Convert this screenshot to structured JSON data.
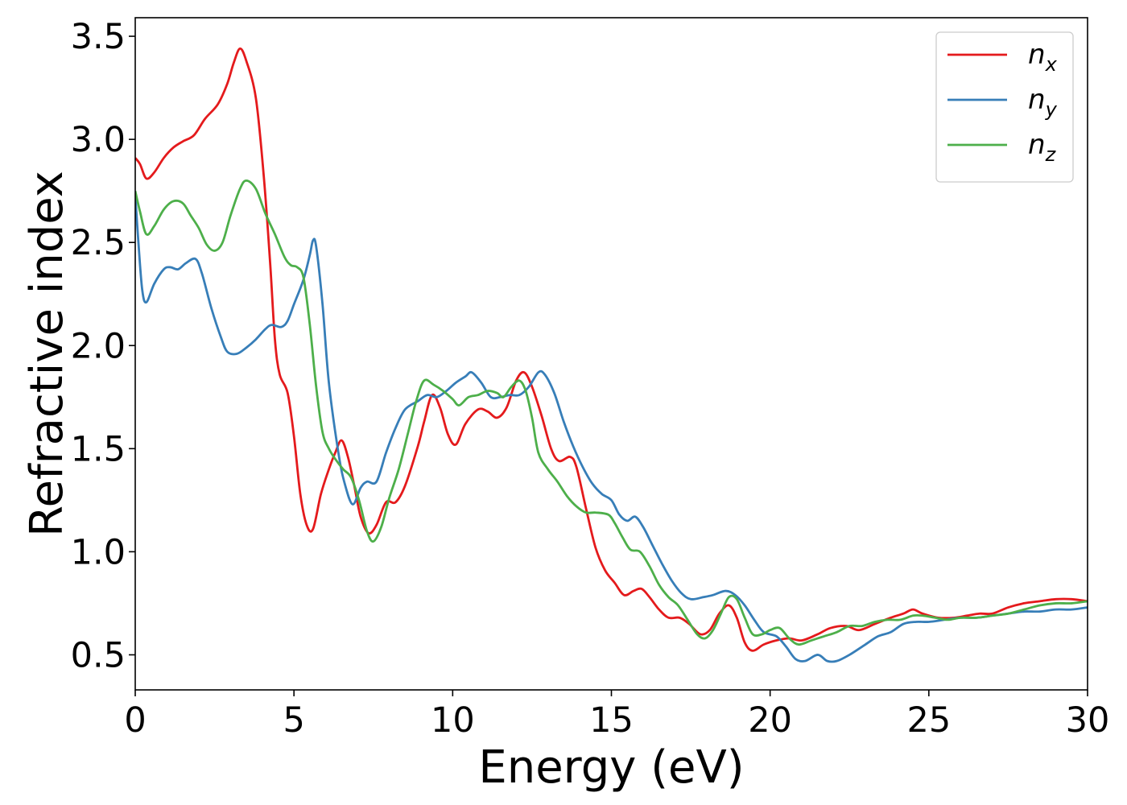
{
  "chart_data": {
    "type": "line",
    "xlabel": "Energy (eV)",
    "ylabel": "Refractive index",
    "xlim": [
      0,
      30
    ],
    "ylim": [
      0.33,
      3.59
    ],
    "xticks": [
      0,
      5,
      10,
      15,
      20,
      25,
      30
    ],
    "yticks": [
      0.5,
      1.0,
      1.5,
      2.0,
      2.5,
      3.0,
      3.5
    ],
    "xtick_labels": [
      "0",
      "5",
      "10",
      "15",
      "20",
      "25",
      "30"
    ],
    "ytick_labels": [
      "0.5",
      "1.0",
      "1.5",
      "2.0",
      "2.5",
      "3.0",
      "3.5"
    ],
    "grid": false,
    "legend_position": "top-right",
    "series": [
      {
        "name": "n_x",
        "label_base": "n",
        "label_sub": "x",
        "color": "#e41a1c",
        "points": [
          [
            0,
            2.91
          ],
          [
            0.15,
            2.88
          ],
          [
            0.35,
            2.81
          ],
          [
            0.6,
            2.84
          ],
          [
            0.9,
            2.91
          ],
          [
            1.2,
            2.96
          ],
          [
            1.5,
            2.99
          ],
          [
            1.85,
            3.02
          ],
          [
            2.2,
            3.1
          ],
          [
            2.6,
            3.17
          ],
          [
            2.9,
            3.27
          ],
          [
            3.1,
            3.37
          ],
          [
            3.3,
            3.44
          ],
          [
            3.5,
            3.38
          ],
          [
            3.8,
            3.2
          ],
          [
            4.05,
            2.82
          ],
          [
            4.25,
            2.4
          ],
          [
            4.4,
            2.03
          ],
          [
            4.55,
            1.86
          ],
          [
            4.8,
            1.77
          ],
          [
            5.0,
            1.56
          ],
          [
            5.2,
            1.28
          ],
          [
            5.4,
            1.13
          ],
          [
            5.6,
            1.11
          ],
          [
            5.85,
            1.28
          ],
          [
            6.1,
            1.4
          ],
          [
            6.3,
            1.48
          ],
          [
            6.5,
            1.54
          ],
          [
            6.7,
            1.46
          ],
          [
            6.9,
            1.32
          ],
          [
            7.1,
            1.17
          ],
          [
            7.35,
            1.09
          ],
          [
            7.6,
            1.13
          ],
          [
            7.9,
            1.24
          ],
          [
            8.2,
            1.24
          ],
          [
            8.5,
            1.32
          ],
          [
            8.9,
            1.51
          ],
          [
            9.1,
            1.63
          ],
          [
            9.35,
            1.76
          ],
          [
            9.6,
            1.7
          ],
          [
            9.85,
            1.57
          ],
          [
            10.1,
            1.52
          ],
          [
            10.4,
            1.62
          ],
          [
            10.8,
            1.69
          ],
          [
            11.1,
            1.68
          ],
          [
            11.4,
            1.65
          ],
          [
            11.7,
            1.7
          ],
          [
            12.0,
            1.83
          ],
          [
            12.25,
            1.87
          ],
          [
            12.5,
            1.8
          ],
          [
            12.8,
            1.66
          ],
          [
            13.1,
            1.5
          ],
          [
            13.35,
            1.44
          ],
          [
            13.7,
            1.46
          ],
          [
            13.9,
            1.41
          ],
          [
            14.2,
            1.21
          ],
          [
            14.5,
            1.02
          ],
          [
            14.8,
            0.91
          ],
          [
            15.1,
            0.85
          ],
          [
            15.4,
            0.79
          ],
          [
            15.7,
            0.81
          ],
          [
            15.95,
            0.82
          ],
          [
            16.2,
            0.78
          ],
          [
            16.5,
            0.72
          ],
          [
            16.8,
            0.68
          ],
          [
            17.15,
            0.68
          ],
          [
            17.45,
            0.65
          ],
          [
            17.8,
            0.6
          ],
          [
            18.1,
            0.62
          ],
          [
            18.4,
            0.7
          ],
          [
            18.7,
            0.74
          ],
          [
            18.95,
            0.68
          ],
          [
            19.2,
            0.56
          ],
          [
            19.45,
            0.52
          ],
          [
            19.8,
            0.55
          ],
          [
            20.2,
            0.57
          ],
          [
            20.6,
            0.58
          ],
          [
            21.0,
            0.57
          ],
          [
            21.5,
            0.6
          ],
          [
            21.9,
            0.63
          ],
          [
            22.4,
            0.64
          ],
          [
            22.8,
            0.62
          ],
          [
            23.3,
            0.65
          ],
          [
            23.8,
            0.68
          ],
          [
            24.2,
            0.7
          ],
          [
            24.5,
            0.72
          ],
          [
            24.8,
            0.7
          ],
          [
            25.3,
            0.68
          ],
          [
            25.8,
            0.68
          ],
          [
            26.2,
            0.69
          ],
          [
            26.6,
            0.7
          ],
          [
            27.0,
            0.7
          ],
          [
            27.5,
            0.73
          ],
          [
            28.0,
            0.75
          ],
          [
            28.5,
            0.76
          ],
          [
            29.0,
            0.77
          ],
          [
            29.5,
            0.77
          ],
          [
            30.0,
            0.76
          ]
        ]
      },
      {
        "name": "n_y",
        "label_base": "n",
        "label_sub": "y",
        "color": "#377eb8",
        "points": [
          [
            0,
            2.73
          ],
          [
            0.1,
            2.5
          ],
          [
            0.22,
            2.27
          ],
          [
            0.35,
            2.21
          ],
          [
            0.6,
            2.3
          ],
          [
            0.9,
            2.37
          ],
          [
            1.1,
            2.38
          ],
          [
            1.35,
            2.37
          ],
          [
            1.6,
            2.4
          ],
          [
            1.9,
            2.42
          ],
          [
            2.1,
            2.35
          ],
          [
            2.4,
            2.18
          ],
          [
            2.7,
            2.04
          ],
          [
            2.9,
            1.97
          ],
          [
            3.2,
            1.96
          ],
          [
            3.5,
            1.99
          ],
          [
            3.8,
            2.03
          ],
          [
            4.1,
            2.08
          ],
          [
            4.3,
            2.1
          ],
          [
            4.6,
            2.09
          ],
          [
            4.8,
            2.12
          ],
          [
            5.0,
            2.2
          ],
          [
            5.3,
            2.32
          ],
          [
            5.5,
            2.44
          ],
          [
            5.6,
            2.51
          ],
          [
            5.7,
            2.48
          ],
          [
            5.9,
            2.2
          ],
          [
            6.1,
            1.82
          ],
          [
            6.4,
            1.48
          ],
          [
            6.6,
            1.33
          ],
          [
            6.85,
            1.23
          ],
          [
            7.1,
            1.31
          ],
          [
            7.3,
            1.34
          ],
          [
            7.6,
            1.34
          ],
          [
            7.9,
            1.48
          ],
          [
            8.2,
            1.6
          ],
          [
            8.5,
            1.69
          ],
          [
            8.9,
            1.73
          ],
          [
            9.2,
            1.76
          ],
          [
            9.5,
            1.75
          ],
          [
            9.8,
            1.78
          ],
          [
            10.1,
            1.82
          ],
          [
            10.4,
            1.85
          ],
          [
            10.6,
            1.87
          ],
          [
            10.9,
            1.82
          ],
          [
            11.2,
            1.75
          ],
          [
            11.5,
            1.75
          ],
          [
            11.8,
            1.76
          ],
          [
            12.1,
            1.76
          ],
          [
            12.4,
            1.8
          ],
          [
            12.7,
            1.87
          ],
          [
            12.9,
            1.86
          ],
          [
            13.2,
            1.77
          ],
          [
            13.5,
            1.63
          ],
          [
            13.8,
            1.51
          ],
          [
            14.1,
            1.41
          ],
          [
            14.4,
            1.33
          ],
          [
            14.7,
            1.28
          ],
          [
            15.0,
            1.25
          ],
          [
            15.25,
            1.18
          ],
          [
            15.5,
            1.15
          ],
          [
            15.75,
            1.17
          ],
          [
            16.0,
            1.12
          ],
          [
            16.3,
            1.03
          ],
          [
            16.6,
            0.94
          ],
          [
            16.9,
            0.86
          ],
          [
            17.2,
            0.8
          ],
          [
            17.5,
            0.77
          ],
          [
            17.9,
            0.78
          ],
          [
            18.2,
            0.79
          ],
          [
            18.6,
            0.81
          ],
          [
            18.9,
            0.79
          ],
          [
            19.2,
            0.74
          ],
          [
            19.5,
            0.67
          ],
          [
            19.8,
            0.61
          ],
          [
            20.2,
            0.59
          ],
          [
            20.5,
            0.54
          ],
          [
            20.8,
            0.48
          ],
          [
            21.1,
            0.47
          ],
          [
            21.5,
            0.5
          ],
          [
            21.8,
            0.47
          ],
          [
            22.1,
            0.47
          ],
          [
            22.5,
            0.5
          ],
          [
            23.0,
            0.55
          ],
          [
            23.4,
            0.59
          ],
          [
            23.8,
            0.61
          ],
          [
            24.2,
            0.65
          ],
          [
            24.6,
            0.66
          ],
          [
            25.0,
            0.66
          ],
          [
            25.5,
            0.67
          ],
          [
            26.0,
            0.68
          ],
          [
            26.5,
            0.68
          ],
          [
            27.0,
            0.69
          ],
          [
            27.5,
            0.7
          ],
          [
            28.0,
            0.71
          ],
          [
            28.5,
            0.71
          ],
          [
            29.0,
            0.72
          ],
          [
            29.5,
            0.72
          ],
          [
            30.0,
            0.73
          ]
        ]
      },
      {
        "name": "n_z",
        "label_base": "n",
        "label_sub": "z",
        "color": "#4daf4a",
        "points": [
          [
            0,
            2.75
          ],
          [
            0.15,
            2.65
          ],
          [
            0.35,
            2.54
          ],
          [
            0.6,
            2.58
          ],
          [
            0.9,
            2.66
          ],
          [
            1.2,
            2.7
          ],
          [
            1.5,
            2.69
          ],
          [
            1.75,
            2.63
          ],
          [
            2.0,
            2.57
          ],
          [
            2.25,
            2.49
          ],
          [
            2.5,
            2.46
          ],
          [
            2.75,
            2.5
          ],
          [
            3.0,
            2.63
          ],
          [
            3.3,
            2.76
          ],
          [
            3.5,
            2.8
          ],
          [
            3.8,
            2.76
          ],
          [
            4.1,
            2.64
          ],
          [
            4.4,
            2.54
          ],
          [
            4.7,
            2.43
          ],
          [
            4.9,
            2.39
          ],
          [
            5.1,
            2.38
          ],
          [
            5.3,
            2.33
          ],
          [
            5.5,
            2.1
          ],
          [
            5.7,
            1.8
          ],
          [
            5.9,
            1.58
          ],
          [
            6.1,
            1.5
          ],
          [
            6.3,
            1.45
          ],
          [
            6.55,
            1.4
          ],
          [
            6.8,
            1.36
          ],
          [
            7.05,
            1.25
          ],
          [
            7.3,
            1.1
          ],
          [
            7.5,
            1.05
          ],
          [
            7.75,
            1.12
          ],
          [
            8.0,
            1.26
          ],
          [
            8.3,
            1.4
          ],
          [
            8.6,
            1.58
          ],
          [
            8.85,
            1.73
          ],
          [
            9.1,
            1.83
          ],
          [
            9.4,
            1.81
          ],
          [
            9.7,
            1.78
          ],
          [
            10.0,
            1.74
          ],
          [
            10.2,
            1.71
          ],
          [
            10.5,
            1.75
          ],
          [
            10.8,
            1.76
          ],
          [
            11.1,
            1.78
          ],
          [
            11.4,
            1.77
          ],
          [
            11.6,
            1.75
          ],
          [
            11.85,
            1.8
          ],
          [
            12.1,
            1.83
          ],
          [
            12.3,
            1.78
          ],
          [
            12.5,
            1.65
          ],
          [
            12.7,
            1.48
          ],
          [
            13.0,
            1.4
          ],
          [
            13.3,
            1.34
          ],
          [
            13.6,
            1.27
          ],
          [
            13.9,
            1.22
          ],
          [
            14.2,
            1.19
          ],
          [
            14.5,
            1.19
          ],
          [
            14.9,
            1.18
          ],
          [
            15.1,
            1.14
          ],
          [
            15.35,
            1.07
          ],
          [
            15.6,
            1.01
          ],
          [
            15.9,
            1.0
          ],
          [
            16.2,
            0.93
          ],
          [
            16.5,
            0.84
          ],
          [
            16.8,
            0.78
          ],
          [
            17.1,
            0.74
          ],
          [
            17.4,
            0.67
          ],
          [
            17.7,
            0.6
          ],
          [
            17.95,
            0.58
          ],
          [
            18.2,
            0.62
          ],
          [
            18.45,
            0.7
          ],
          [
            18.7,
            0.78
          ],
          [
            18.95,
            0.77
          ],
          [
            19.2,
            0.68
          ],
          [
            19.45,
            0.6
          ],
          [
            19.75,
            0.6
          ],
          [
            20.0,
            0.62
          ],
          [
            20.3,
            0.63
          ],
          [
            20.6,
            0.58
          ],
          [
            20.9,
            0.55
          ],
          [
            21.3,
            0.57
          ],
          [
            21.7,
            0.59
          ],
          [
            22.1,
            0.61
          ],
          [
            22.5,
            0.64
          ],
          [
            22.9,
            0.64
          ],
          [
            23.3,
            0.66
          ],
          [
            23.7,
            0.67
          ],
          [
            24.1,
            0.67
          ],
          [
            24.5,
            0.69
          ],
          [
            24.8,
            0.69
          ],
          [
            25.2,
            0.68
          ],
          [
            25.6,
            0.67
          ],
          [
            26.0,
            0.68
          ],
          [
            26.5,
            0.68
          ],
          [
            27.0,
            0.69
          ],
          [
            27.5,
            0.7
          ],
          [
            28.0,
            0.72
          ],
          [
            28.5,
            0.74
          ],
          [
            29.0,
            0.75
          ],
          [
            29.5,
            0.75
          ],
          [
            30.0,
            0.76
          ]
        ]
      }
    ]
  }
}
